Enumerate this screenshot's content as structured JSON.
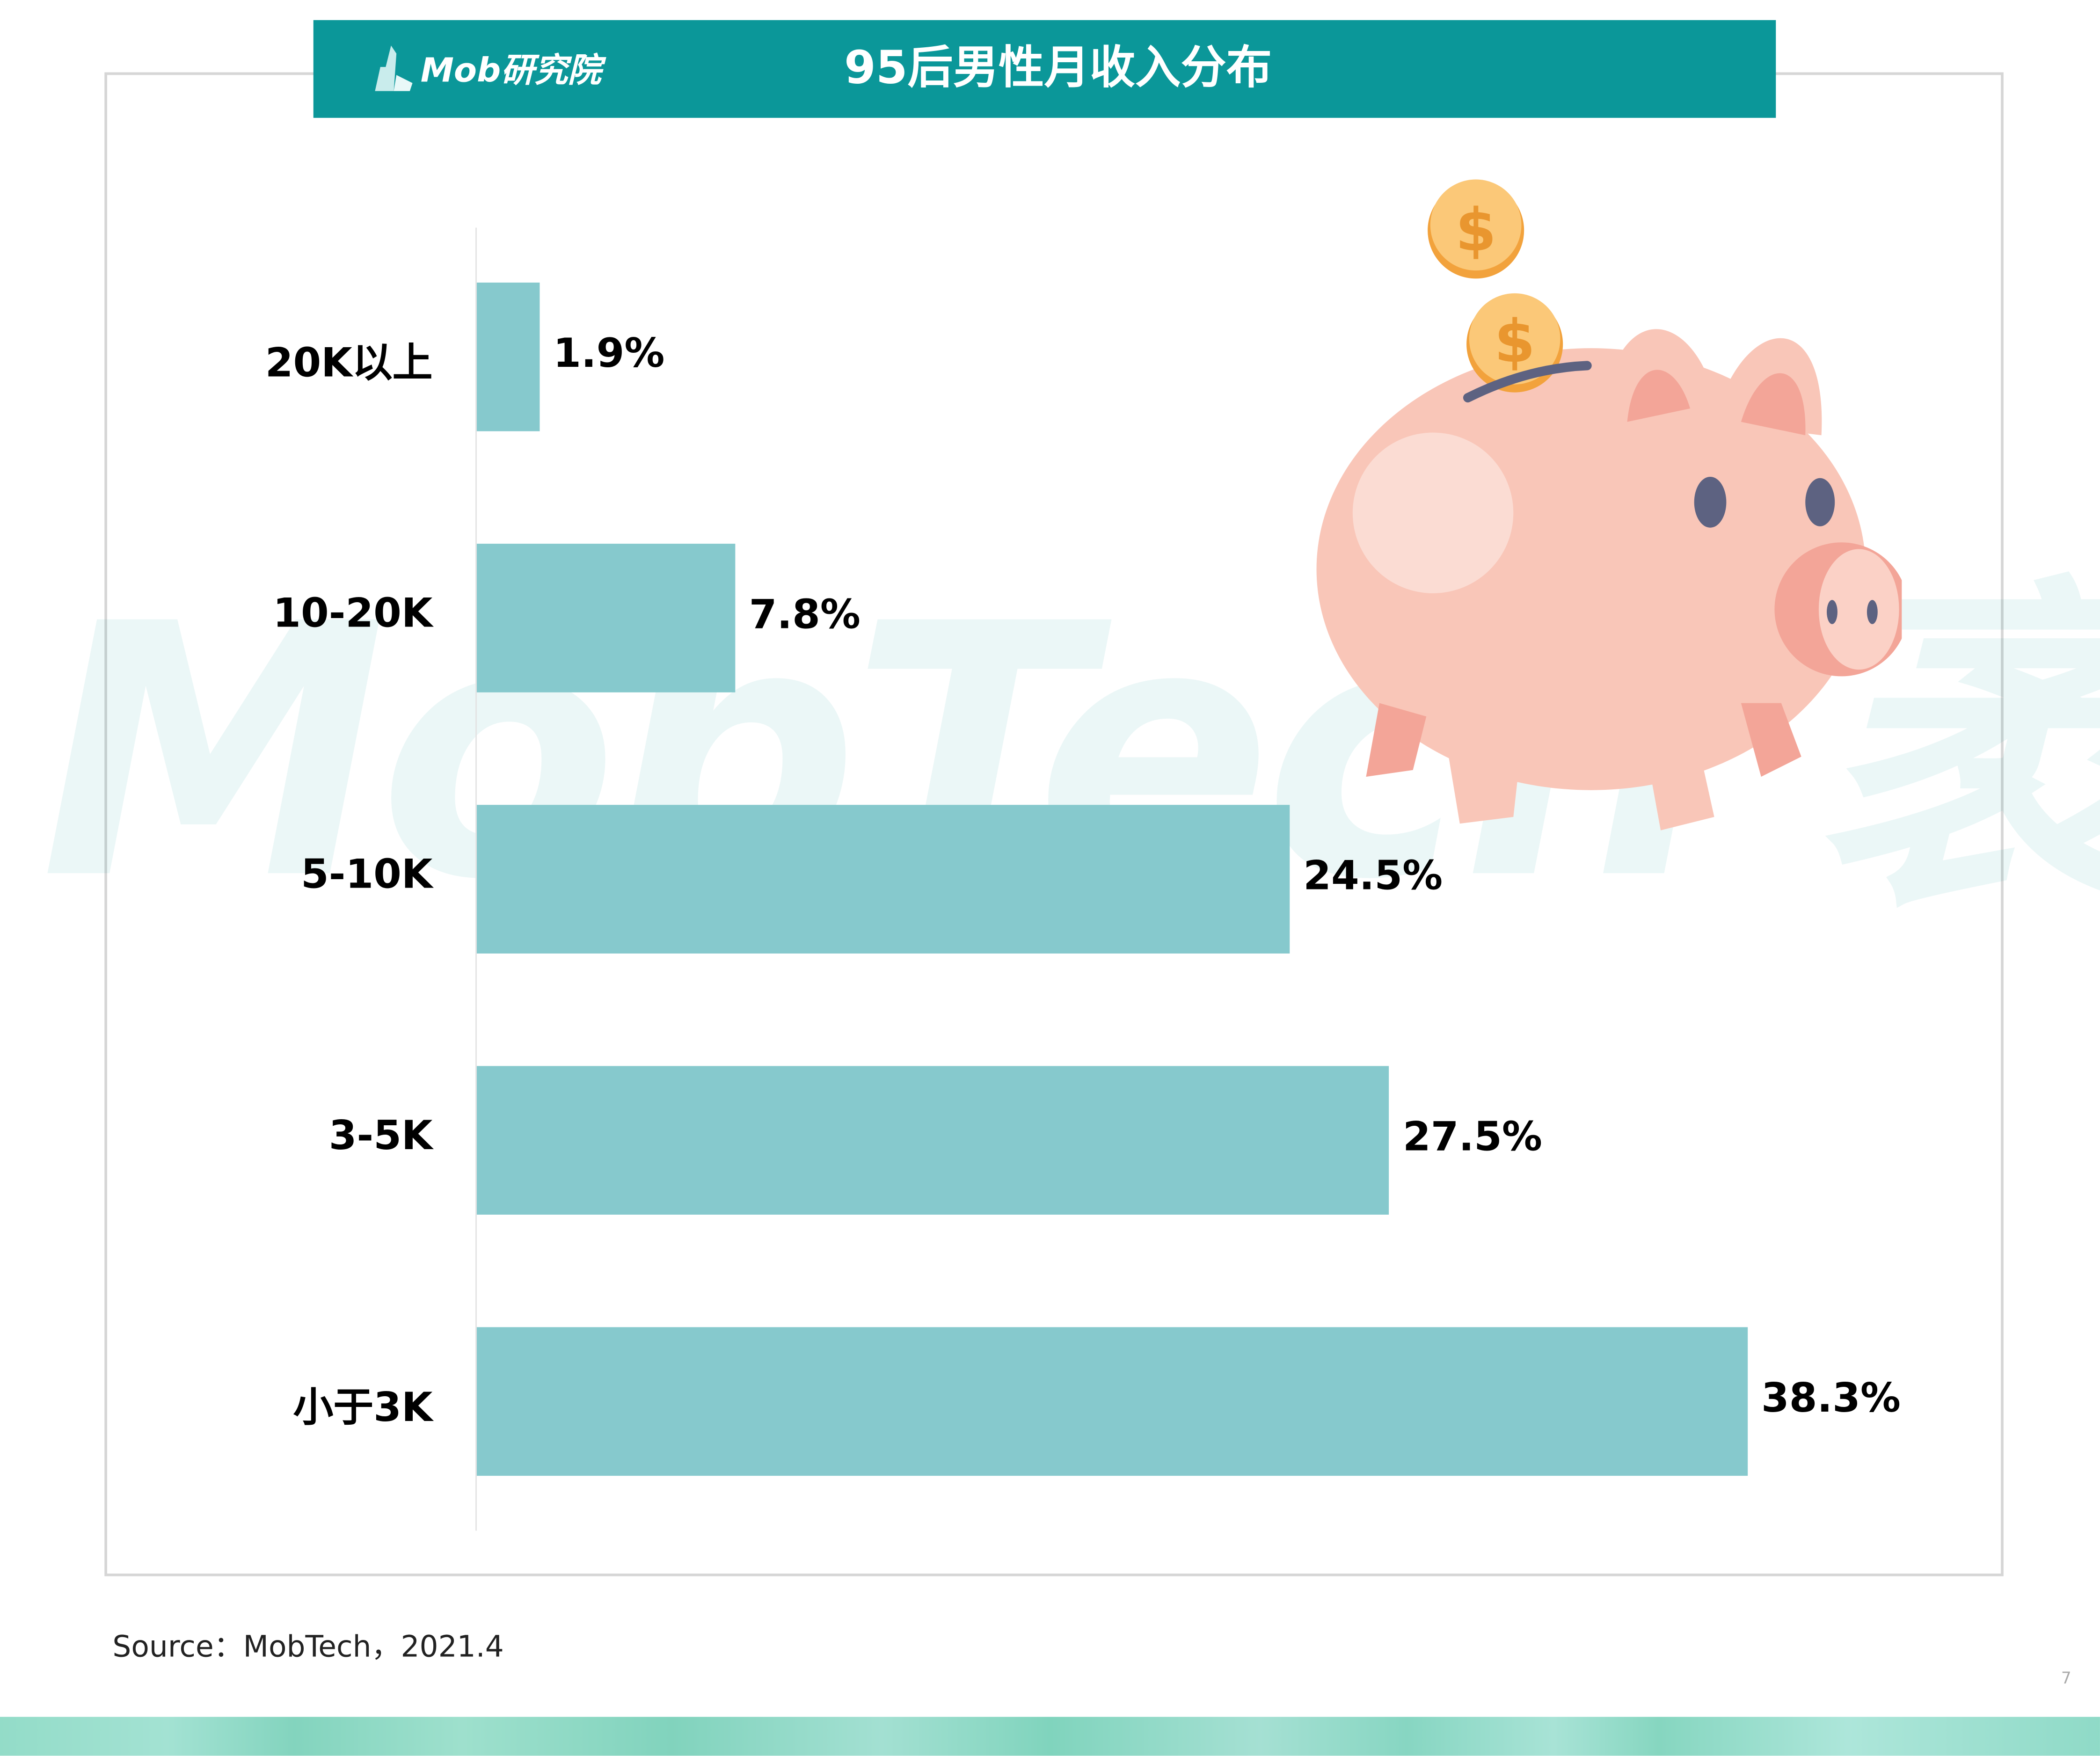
{
  "header": {
    "logo_text": "Mob研究院",
    "title": "95后男性月收入分布"
  },
  "watermark": "MobTech 袤博",
  "colors": {
    "header": "#0b9799",
    "bar": "#86c9cd"
  },
  "illustration": "piggy-bank-with-coins",
  "chart_data": {
    "type": "bar",
    "orientation": "horizontal",
    "title": "95后男性月收入分布",
    "categories": [
      "20K以上",
      "10-20K",
      "5-10K",
      "3-5K",
      "小于3K"
    ],
    "values": [
      1.9,
      7.8,
      24.5,
      27.5,
      38.3
    ],
    "labels": [
      "1.9%",
      "7.8%",
      "24.5%",
      "27.5%",
      "38.3%"
    ],
    "unit": "%",
    "xlabel": "",
    "ylabel": "",
    "grid": false
  },
  "source": "Source：MobTech，2021.4",
  "page_number": "7"
}
